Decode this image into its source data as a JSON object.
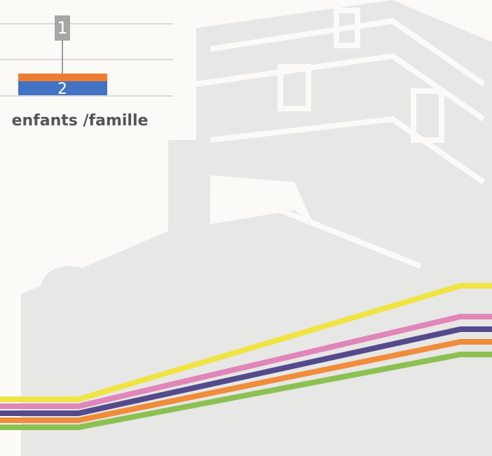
{
  "chart_fragment": {
    "top_label": "1",
    "bar_label": "2",
    "caption": "enfants /famille"
  }
}
